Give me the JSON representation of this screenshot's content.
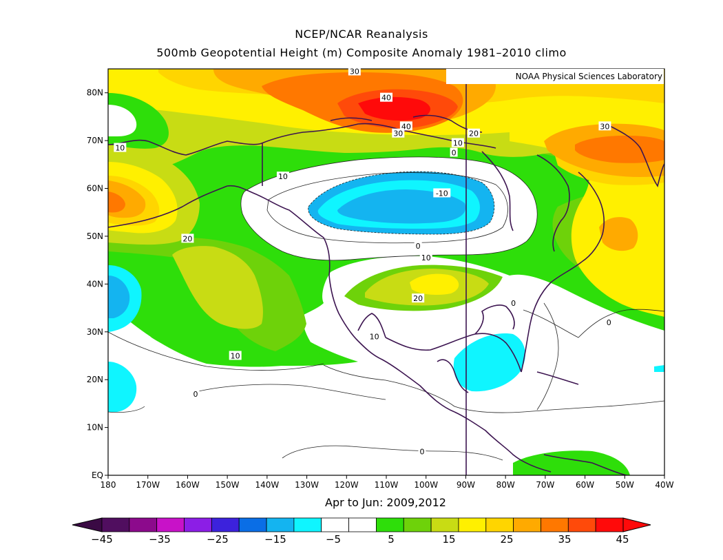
{
  "title_line1": "NCEP/NCAR Reanalysis",
  "title_line2": "500mb Geopotential Height (m) Composite Anomaly 1981–2010 climo",
  "credit": "NOAA Physical Sciences Laboratory",
  "period": "Apr to Jun: 2009,2012",
  "lat_labels": [
    "EQ",
    "10N",
    "20N",
    "30N",
    "40N",
    "50N",
    "60N",
    "70N",
    "80N"
  ],
  "lon_labels": [
    "180",
    "170W",
    "160W",
    "150W",
    "140W",
    "130W",
    "120W",
    "110W",
    "100W",
    "90W",
    "80W",
    "70W",
    "60W",
    "50W",
    "40W"
  ],
  "contour_labels": [
    {
      "text": "30",
      "lon": -118,
      "lat": 84.5
    },
    {
      "text": "40",
      "lon": -110,
      "lat": 79
    },
    {
      "text": "40",
      "lon": -105,
      "lat": 73
    },
    {
      "text": "30",
      "lon": -107,
      "lat": 71.5
    },
    {
      "text": "20",
      "lon": -88,
      "lat": 71.5
    },
    {
      "text": "10",
      "lon": -92,
      "lat": 69.5
    },
    {
      "text": "0",
      "lon": -93,
      "lat": 67.5
    },
    {
      "text": "30",
      "lon": -55,
      "lat": 73
    },
    {
      "text": "10",
      "lon": -177,
      "lat": 68.5
    },
    {
      "text": "10",
      "lon": -136,
      "lat": 62.5
    },
    {
      "text": "-10",
      "lon": -96,
      "lat": 59
    },
    {
      "text": "20",
      "lon": -160,
      "lat": 49.5
    },
    {
      "text": "0",
      "lon": -102,
      "lat": 48
    },
    {
      "text": "10",
      "lon": -100,
      "lat": 45.5
    },
    {
      "text": "20",
      "lon": -102,
      "lat": 37
    },
    {
      "text": "0",
      "lon": -78,
      "lat": 36
    },
    {
      "text": "0",
      "lon": -54,
      "lat": 32
    },
    {
      "text": "10",
      "lon": -113,
      "lat": 29
    },
    {
      "text": "10",
      "lon": -148,
      "lat": 25
    },
    {
      "text": "0",
      "lon": -158,
      "lat": 17
    },
    {
      "text": "0",
      "lon": -101,
      "lat": 5
    }
  ],
  "colorbar": {
    "labels": [
      "−45",
      "−35",
      "−25",
      "−15",
      "−5",
      "5",
      "15",
      "25",
      "35",
      "45"
    ],
    "colors": [
      "#500e5f",
      "#8c0a8c",
      "#c812c8",
      "#8c1ee6",
      "#3c22dc",
      "#0a6ee6",
      "#14b4f0",
      "#0ff5ff",
      "#ffffff",
      "#ffffff",
      "#2ede0a",
      "#6ed20a",
      "#c8dc14",
      "#fff000",
      "#ffd500",
      "#ffaa00",
      "#ff7800",
      "#ff4a0a",
      "#ff0a0a"
    ]
  },
  "colors": {
    "frame": "#000000",
    "coast": "#3c1450",
    "land_border": "#3c1450"
  }
}
